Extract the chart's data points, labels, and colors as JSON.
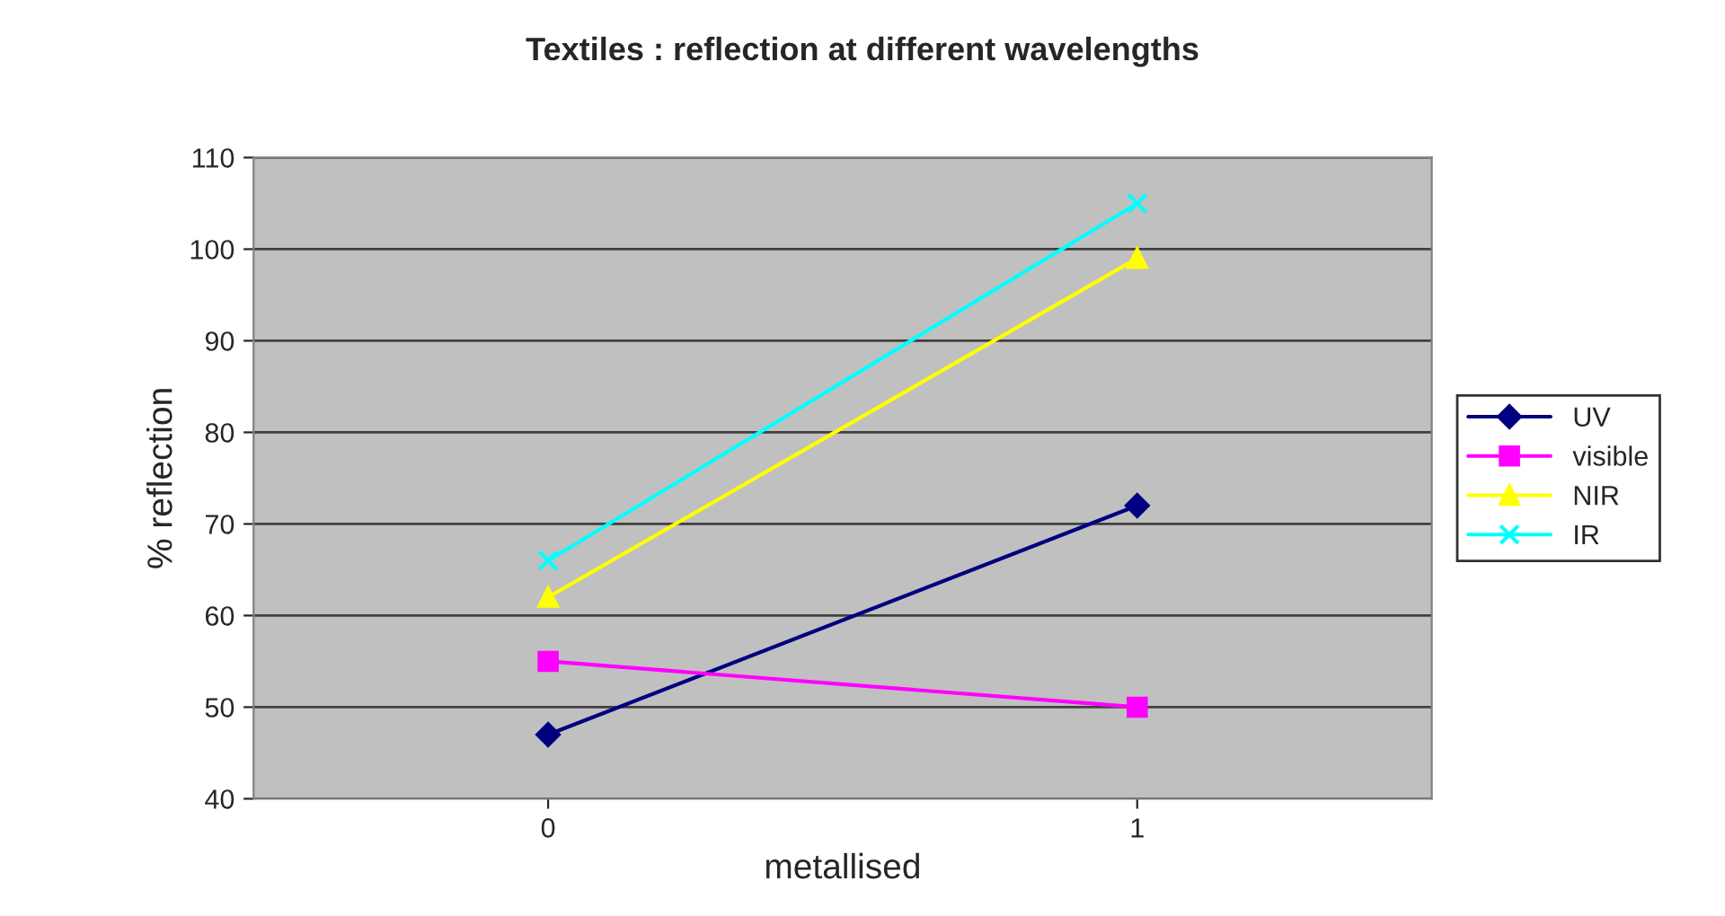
{
  "chart_data": {
    "type": "line",
    "title": "Textiles : reflection at different wavelengths",
    "xlabel": "metallised",
    "ylabel": "% reflection",
    "categories": [
      "0",
      "1"
    ],
    "series": [
      {
        "name": "UV",
        "color": "#000080",
        "values": [
          47,
          72
        ],
        "marker": "diamond"
      },
      {
        "name": "visible",
        "color": "#ff00ff",
        "values": [
          55,
          50
        ],
        "marker": "square"
      },
      {
        "name": "NIR",
        "color": "#ffff00",
        "values": [
          62,
          99
        ],
        "marker": "triangle"
      },
      {
        "name": "IR",
        "color": "#00ffff",
        "values": [
          66,
          105
        ],
        "marker": "cross"
      }
    ],
    "ylim": [
      40,
      110
    ],
    "yticks": [
      40,
      50,
      60,
      70,
      80,
      90,
      100,
      110
    ],
    "grid": "y",
    "legend": "right"
  }
}
